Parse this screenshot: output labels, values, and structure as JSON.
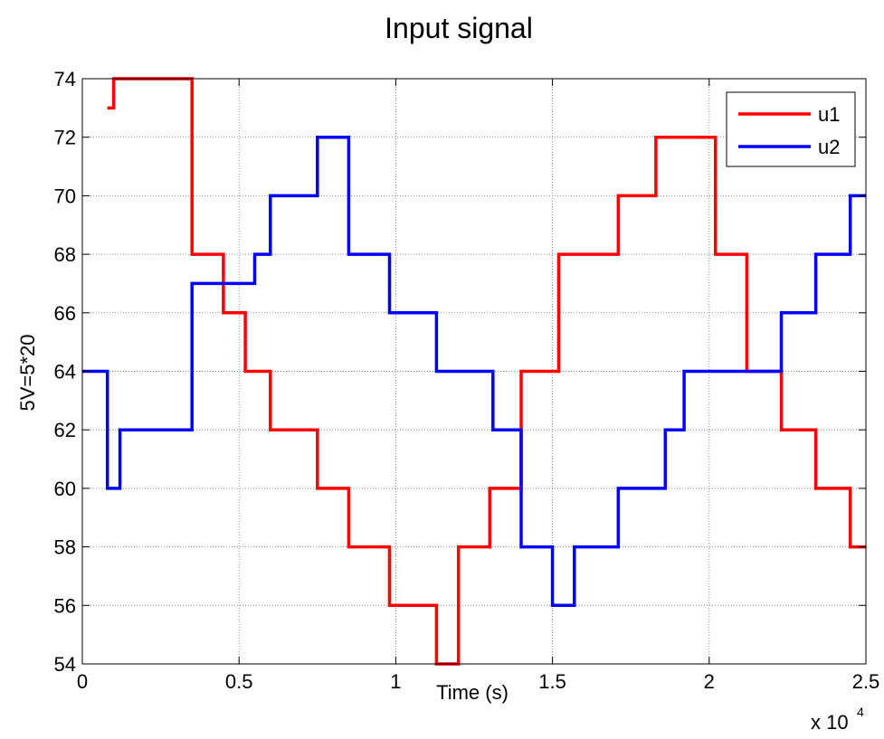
{
  "chart_data": {
    "type": "line",
    "title": "Input signal",
    "xlabel": "Time (s)",
    "ylabel": "5V=5*20",
    "x_multiplier_label": "x 10",
    "x_multiplier_exponent": "4",
    "xlim": [
      0,
      2.5
    ],
    "ylim": [
      54,
      74
    ],
    "xticks": [
      0,
      0.5,
      1,
      1.5,
      2,
      2.5
    ],
    "xtick_labels": [
      "0",
      "0.5",
      "1",
      "1.5",
      "2",
      "2.5"
    ],
    "yticks": [
      54,
      56,
      58,
      60,
      62,
      64,
      66,
      68,
      70,
      72,
      74
    ],
    "ytick_labels": [
      "54",
      "56",
      "58",
      "60",
      "62",
      "64",
      "66",
      "68",
      "70",
      "72",
      "74"
    ],
    "grid": true,
    "legend_position": "top-right",
    "step": true,
    "series": [
      {
        "name": "u1",
        "color": "#ff0000",
        "x": [
          0.08,
          0.1,
          0.35,
          0.45,
          0.52,
          0.6,
          0.75,
          0.85,
          0.98,
          1.13,
          1.2,
          1.3,
          1.4,
          1.52,
          1.71,
          1.83,
          2.02,
          2.12,
          2.23,
          2.34,
          2.45
        ],
        "y": [
          73,
          74,
          68,
          66,
          64,
          62,
          60,
          58,
          56,
          54,
          58,
          60,
          64,
          68,
          70,
          72,
          68,
          64,
          62,
          60,
          58
        ]
      },
      {
        "name": "u2",
        "color": "#0000ff",
        "x": [
          0,
          0.08,
          0.12,
          0.35,
          0.55,
          0.6,
          0.75,
          0.85,
          0.98,
          1.13,
          1.31,
          1.4,
          1.5,
          1.57,
          1.71,
          1.86,
          1.92,
          2.23,
          2.34,
          2.45
        ],
        "y": [
          64,
          60,
          62,
          67,
          68,
          70,
          72,
          68,
          66,
          64,
          62,
          58,
          56,
          58,
          60,
          62,
          64,
          66,
          68,
          70
        ]
      }
    ]
  }
}
